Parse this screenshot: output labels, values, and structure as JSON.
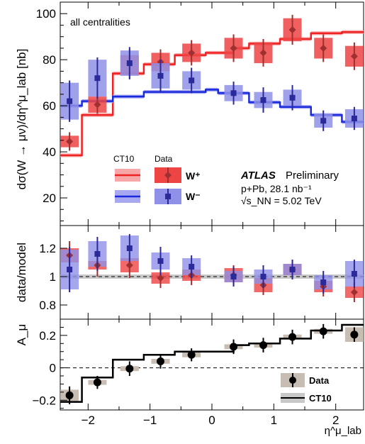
{
  "chart_data": [
    {
      "type": "scatter",
      "panel": "cross-section",
      "ylabel": "dσ(W → μν)/dη^μ_lab [nb]",
      "ylim": [
        8,
        105
      ],
      "yticks": [
        20,
        40,
        60,
        80,
        100
      ],
      "xlim": [
        -2.45,
        2.45
      ],
      "annotations": [
        "all centralities"
      ],
      "atlas_label": "ATLAS",
      "atlas_status": "Preliminary",
      "dataset_lines": [
        "p+Pb, 28.1 nb⁻¹",
        "√s_NN = 5.02 TeV"
      ],
      "legend": {
        "headers": [
          "CT10",
          "Data"
        ],
        "entries": [
          "W⁺",
          "W⁻"
        ]
      },
      "colors": {
        "wplus": "#ee2222",
        "wplus_band": "#f7a7a7",
        "wminus": "#1a2bdd",
        "wminus_band": "#a7a8f0",
        "wplus_marker": "#a03030",
        "wminus_marker": "#2a2a9a"
      },
      "series": [
        {
          "name": "W⁺",
          "x": [
            -2.3,
            -1.85,
            -1.33,
            -0.83,
            -0.33,
            0.35,
            0.83,
            1.3,
            1.8,
            2.3
          ],
          "y": [
            44.5,
            60.5,
            78,
            79,
            83,
            85,
            83,
            93,
            85,
            81.5
          ],
          "err": [
            4,
            4,
            6.5,
            5.5,
            5.5,
            6,
            6,
            6.5,
            6,
            6
          ],
          "syst": [
            2.5,
            3.5,
            4,
            4,
            4,
            4.5,
            4.5,
            5,
            4.5,
            4.5
          ],
          "model_edges": [
            -2.45,
            -2.1,
            -1.6,
            -1.1,
            -0.6,
            -0.1,
            0.35,
            0.6,
            1.1,
            1.6,
            2.1,
            2.45
          ],
          "model_values": [
            38.5,
            56,
            74,
            78,
            82,
            83,
            85,
            87,
            89,
            91.5,
            92
          ]
        },
        {
          "name": "W⁻",
          "x": [
            -2.3,
            -1.85,
            -1.33,
            -0.83,
            -0.33,
            0.35,
            0.83,
            1.3,
            1.8,
            2.3
          ],
          "y": [
            62,
            72,
            78.5,
            73,
            71,
            65.5,
            62.5,
            63.5,
            53.5,
            54.5
          ],
          "err": [
            9,
            9,
            7,
            7,
            5.5,
            5,
            5.5,
            5.5,
            4.5,
            5
          ],
          "syst": [
            8,
            8,
            5.5,
            5.5,
            4,
            3.5,
            3.5,
            3.5,
            3,
            4
          ],
          "model_edges": [
            -2.45,
            -2.1,
            -1.6,
            -1.1,
            -0.6,
            -0.1,
            0.1,
            0.6,
            1.1,
            1.6,
            2.1,
            2.45
          ],
          "model_values": [
            60,
            62,
            64,
            66,
            66,
            67,
            65.5,
            61.5,
            59.5,
            56,
            53
          ]
        }
      ]
    },
    {
      "type": "scatter",
      "panel": "ratio",
      "ylabel": "data/model",
      "ylim": [
        0.7,
        1.36
      ],
      "yticks": [
        0.8,
        1,
        1.2
      ],
      "series": [
        {
          "name": "W⁺",
          "x": [
            -2.3,
            -1.85,
            -1.33,
            -0.83,
            -0.33,
            0.35,
            0.83,
            1.3,
            1.8,
            2.3
          ],
          "y": [
            1.15,
            1.08,
            1.08,
            0.99,
            1.01,
            1.01,
            0.94,
            1.05,
            0.93,
            0.89
          ],
          "err": [
            0.1,
            0.08,
            0.09,
            0.07,
            0.07,
            0.07,
            0.07,
            0.07,
            0.07,
            0.07
          ],
          "syst": [
            0.05,
            0.03,
            0.05,
            0.04,
            0.04,
            0.05,
            0.05,
            0.04,
            0.04,
            0.04
          ]
        },
        {
          "name": "W⁻",
          "x": [
            -2.3,
            -1.85,
            -1.33,
            -0.83,
            -0.33,
            0.35,
            0.83,
            1.3,
            1.8,
            2.3
          ],
          "y": [
            1.05,
            1.16,
            1.2,
            1.11,
            1.07,
            1.0,
            1.0,
            1.05,
            0.96,
            1.02
          ],
          "err": [
            0.16,
            0.12,
            0.1,
            0.1,
            0.08,
            0.07,
            0.08,
            0.07,
            0.08,
            0.1
          ],
          "syst": [
            0.14,
            0.09,
            0.09,
            0.06,
            0.06,
            0.04,
            0.05,
            0.04,
            0.05,
            0.09
          ]
        }
      ],
      "model_band": [
        0.985,
        1.015
      ]
    },
    {
      "type": "scatter",
      "panel": "asymmetry",
      "ylabel": "A_μ",
      "xlabel": "η^μ_lab",
      "xlim": [
        -2.45,
        2.45
      ],
      "xticks": [
        -2,
        -1,
        0,
        1,
        2
      ],
      "ylim": [
        -0.26,
        0.3
      ],
      "yticks": [
        -0.2,
        0,
        0.2
      ],
      "legend": {
        "entries": [
          "Data",
          "CT10"
        ]
      },
      "series": [
        {
          "name": "Data",
          "x": [
            -2.3,
            -1.85,
            -1.33,
            -0.83,
            -0.33,
            0.35,
            0.83,
            1.3,
            1.8,
            2.3
          ],
          "y": [
            -0.17,
            -0.09,
            -0.005,
            0.04,
            0.08,
            0.13,
            0.14,
            0.19,
            0.225,
            0.205
          ],
          "err": [
            0.055,
            0.04,
            0.045,
            0.045,
            0.04,
            0.045,
            0.045,
            0.045,
            0.045,
            0.045
          ],
          "syst": [
            0.035,
            0.015,
            0.015,
            0.015,
            0.015,
            0.015,
            0.015,
            0.015,
            0.015,
            0.045
          ]
        },
        {
          "name": "CT10",
          "model_edges": [
            -2.45,
            -2.1,
            -1.6,
            -1.1,
            -0.6,
            -0.1,
            0.35,
            0.6,
            1.1,
            1.6,
            2.1,
            2.45
          ],
          "model_values": [
            -0.21,
            -0.06,
            0.05,
            0.08,
            0.1,
            0.1,
            0.14,
            0.15,
            0.18,
            0.23,
            0.265
          ]
        }
      ]
    }
  ]
}
